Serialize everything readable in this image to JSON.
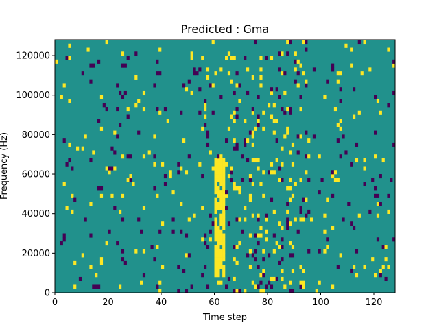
{
  "chart_data": {
    "type": "heatmap",
    "title": "Predicted : Gma",
    "xlabel": "Time step",
    "ylabel": "Frequency (Hz)",
    "xlim": [
      0,
      128
    ],
    "ylim": [
      0,
      128000
    ],
    "x_ticks": [
      0,
      20,
      40,
      60,
      80,
      100,
      120
    ],
    "y_ticks": [
      0,
      20000,
      40000,
      60000,
      80000,
      100000,
      120000
    ],
    "x_tick_labels": [
      "0",
      "20",
      "40",
      "60",
      "80",
      "100",
      "120"
    ],
    "y_tick_labels": [
      "0",
      "20000",
      "40000",
      "60000",
      "80000",
      "100000",
      "120000"
    ],
    "colormap": "viridis",
    "value_levels": {
      "low": -1,
      "mid": 0,
      "high": 1
    },
    "colors": {
      "low": "#440154",
      "mid": "#21918c",
      "high": "#fde725"
    },
    "background_value": 0,
    "high_band": {
      "x_range": [
        60,
        64
      ],
      "y_range": [
        8000,
        68000
      ]
    },
    "grid": false,
    "legend": "none"
  }
}
